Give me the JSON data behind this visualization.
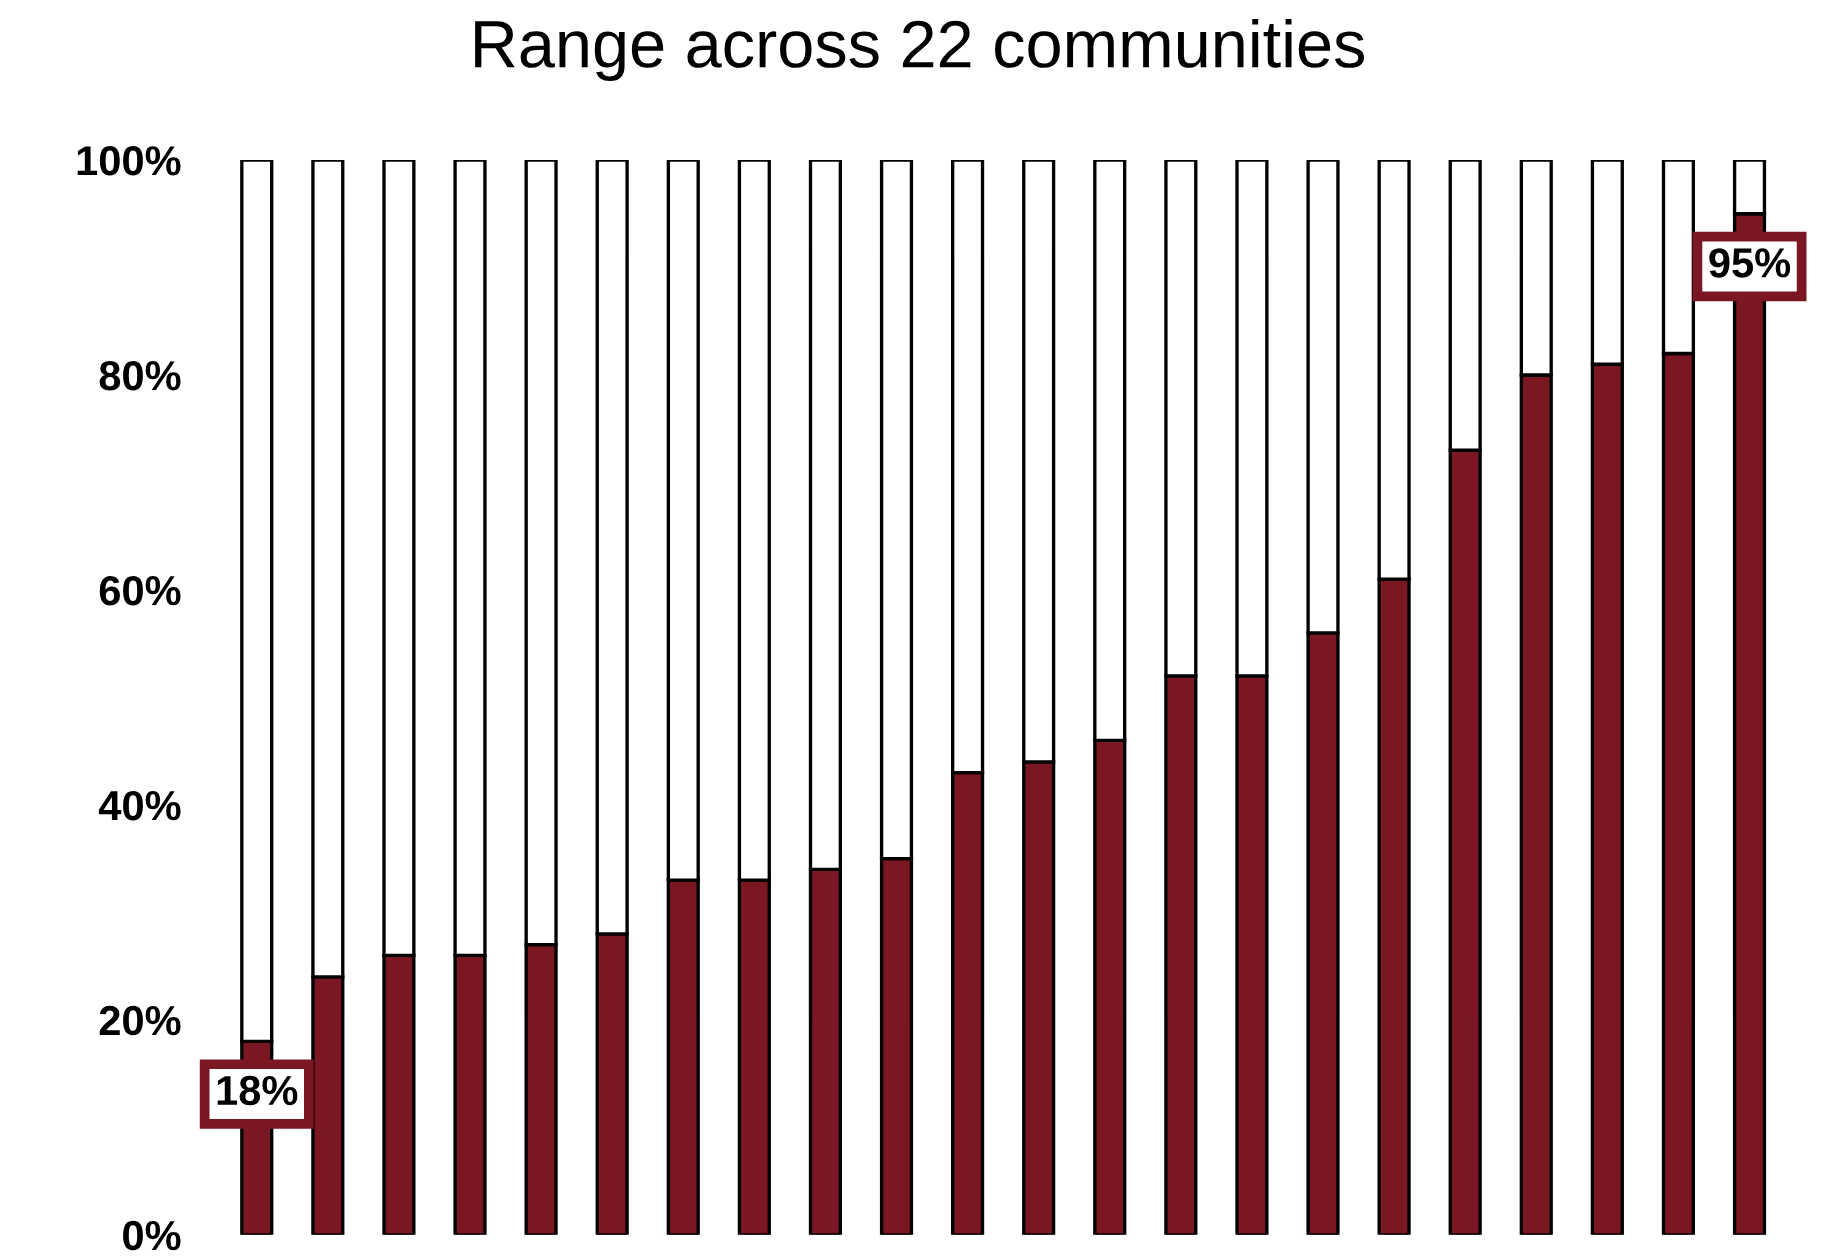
{
  "chart_data": {
    "type": "bar",
    "title": "Range across 22 communities",
    "stacked": true,
    "categories": [
      null,
      null,
      null,
      null,
      null,
      null,
      null,
      null,
      null,
      null,
      null,
      null,
      null,
      null,
      null,
      null,
      null,
      null,
      null,
      null,
      null,
      null
    ],
    "series": [
      {
        "color": "#7b1623",
        "values": [
          18,
          24,
          26,
          26,
          27,
          28,
          33,
          33,
          34,
          35,
          43,
          44,
          46,
          52,
          52,
          56,
          61,
          73,
          80,
          81,
          82,
          95
        ],
        "value_labels": [
          "18%",
          null,
          null,
          null,
          null,
          null,
          null,
          null,
          null,
          null,
          null,
          null,
          null,
          null,
          null,
          null,
          null,
          null,
          null,
          null,
          null,
          "95%"
        ]
      },
      {
        "color": "#ffffff",
        "values": [
          82,
          76,
          74,
          74,
          73,
          72,
          67,
          67,
          66,
          65,
          57,
          56,
          54,
          48,
          48,
          44,
          39,
          27,
          20,
          19,
          18,
          5
        ]
      }
    ],
    "ylim": [
      0,
      100
    ],
    "yticks": [
      {
        "value": 0,
        "label": "0%"
      },
      {
        "value": 20,
        "label": "20%"
      },
      {
        "value": 40,
        "label": "40%"
      },
      {
        "value": 60,
        "label": "60%"
      },
      {
        "value": 80,
        "label": "80%"
      },
      {
        "value": 100,
        "label": "100%"
      }
    ],
    "tick_labels": "y",
    "grid": false,
    "legend": false
  }
}
